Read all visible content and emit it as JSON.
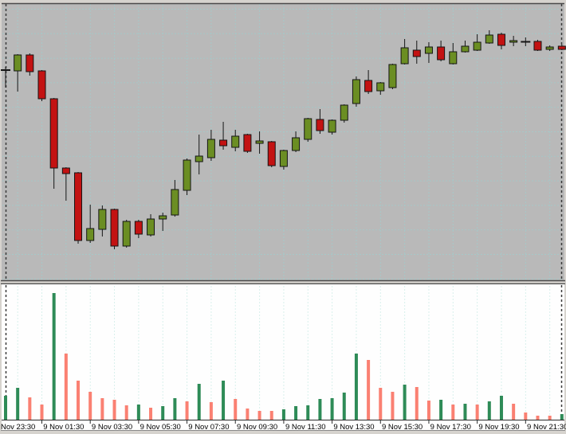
{
  "colors": {
    "frame_bg": "#D6D3CE",
    "price_pane_bg": "#B9B9B9",
    "volume_pane_bg": "#FEFEFE",
    "grid_price": "#A6C8C8",
    "grid_volume": "#D8F0EC",
    "bull_body": "#6B8E23",
    "bear_body": "#C31212",
    "candle_outline": "#151515",
    "volume_up": "#2E8B57",
    "volume_down": "#FA8072",
    "axis_line": "#2B2B2B",
    "axis_text": "#000000",
    "pane_border": "#4A4A4A",
    "side_dash": "#3A3A3A"
  },
  "chart_data": {
    "type": "candlestick",
    "period": "M30",
    "panes": [
      "price",
      "volume"
    ],
    "grid": "dashed, vertical every 2 candles (1h), horizontal every ~31px in price pane",
    "legend_position": "none",
    "y_axis": "not visible (cropped)",
    "x_axis_labels": [
      {
        "text": "Nov 23:30",
        "candle_index": 1
      },
      {
        "text": "9 Nov 01:30",
        "candle_index": 5
      },
      {
        "text": "9 Nov 03:30",
        "candle_index": 9
      },
      {
        "text": "9 Nov 05:30",
        "candle_index": 13
      },
      {
        "text": "9 Nov 07:30",
        "candle_index": 17
      },
      {
        "text": "9 Nov 09:30",
        "candle_index": 21
      },
      {
        "text": "9 Nov 11:30",
        "candle_index": 25
      },
      {
        "text": "9 Nov 13:30",
        "candle_index": 29
      },
      {
        "text": "9 Nov 15:30",
        "candle_index": 33
      },
      {
        "text": "9 Nov 17:30",
        "candle_index": 37
      },
      {
        "text": "9 Nov 19:30",
        "candle_index": 41
      },
      {
        "text": "9 Nov 21:30",
        "candle_index": 45
      }
    ],
    "candles": {
      "columns": [
        "time",
        "direction",
        "body_top_px",
        "body_bottom_px",
        "wick_high_px",
        "wick_low_px",
        "volume",
        "volume_direction"
      ],
      "rows": [
        [
          "8 Nov 23:00",
          "doji",
          87,
          89,
          84,
          110,
          30,
          "up"
        ],
        [
          "8 Nov 23:30",
          "up",
          69,
          89,
          68,
          115,
          40,
          "up"
        ],
        [
          "9 Nov 00:00",
          "down",
          69,
          90,
          67,
          95,
          28,
          "down"
        ],
        [
          "9 Nov 00:30",
          "down",
          89,
          124,
          88,
          127,
          19,
          "down"
        ],
        [
          "9 Nov 01:00",
          "down",
          124,
          211,
          123,
          237,
          159,
          "up"
        ],
        [
          "9 Nov 01:30",
          "down",
          211,
          218,
          210,
          252,
          83,
          "down"
        ],
        [
          "9 Nov 02:00",
          "down",
          217,
          302,
          216,
          306,
          49,
          "down"
        ],
        [
          "9 Nov 02:30",
          "up",
          287,
          302,
          257,
          305,
          35,
          "down"
        ],
        [
          "9 Nov 03:00",
          "up",
          263,
          288,
          258,
          297,
          27,
          "down"
        ],
        [
          "9 Nov 03:30",
          "down",
          263,
          309,
          262,
          313,
          25,
          "down"
        ],
        [
          "9 Nov 04:00",
          "up",
          278,
          309,
          276,
          311,
          18,
          "down"
        ],
        [
          "9 Nov 04:30",
          "down",
          278,
          294,
          276,
          299,
          19,
          "up"
        ],
        [
          "9 Nov 05:00",
          "up",
          275,
          295,
          269,
          297,
          15,
          "down"
        ],
        [
          "9 Nov 05:30",
          "up",
          271,
          275,
          267,
          290,
          17,
          "up"
        ],
        [
          "9 Nov 06:00",
          "up",
          238,
          270,
          226,
          272,
          27,
          "up"
        ],
        [
          "9 Nov 06:30",
          "up",
          201,
          239,
          199,
          245,
          23,
          "down"
        ],
        [
          "9 Nov 07:00",
          "up",
          196,
          203,
          169,
          219,
          45,
          "up"
        ],
        [
          "9 Nov 07:30",
          "up",
          175,
          198,
          163,
          202,
          22,
          "down"
        ],
        [
          "9 Nov 08:00",
          "down",
          176,
          183,
          153,
          188,
          49,
          "up"
        ],
        [
          "9 Nov 08:30",
          "up",
          171,
          185,
          163,
          190,
          26,
          "down"
        ],
        [
          "9 Nov 09:00",
          "down",
          169,
          190,
          168,
          192,
          14,
          "down"
        ],
        [
          "9 Nov 09:30",
          "up",
          177,
          180,
          165,
          193,
          11,
          "down"
        ],
        [
          "9 Nov 10:00",
          "down",
          178,
          208,
          177,
          210,
          11,
          "down"
        ],
        [
          "9 Nov 10:30",
          "up",
          189,
          209,
          188,
          213,
          13,
          "up"
        ],
        [
          "9 Nov 11:00",
          "up",
          173,
          189,
          165,
          191,
          17,
          "up"
        ],
        [
          "9 Nov 11:30",
          "up",
          149,
          175,
          148,
          178,
          18,
          "up"
        ],
        [
          "9 Nov 12:00",
          "down",
          150,
          164,
          137,
          168,
          26,
          "up"
        ],
        [
          "9 Nov 12:30",
          "up",
          151,
          166,
          150,
          169,
          27,
          "up"
        ],
        [
          "9 Nov 13:00",
          "up",
          132,
          151,
          131,
          154,
          34,
          "up"
        ],
        [
          "9 Nov 13:30",
          "up",
          100,
          130,
          96,
          134,
          83,
          "up"
        ],
        [
          "9 Nov 14:00",
          "down",
          101,
          115,
          88,
          118,
          75,
          "down"
        ],
        [
          "9 Nov 14:30",
          "up",
          104,
          114,
          103,
          119,
          40,
          "down"
        ],
        [
          "9 Nov 15:00",
          "up",
          81,
          110,
          80,
          112,
          35,
          "down"
        ],
        [
          "9 Nov 15:30",
          "up",
          60,
          80,
          49,
          81,
          44,
          "up"
        ],
        [
          "9 Nov 16:00",
          "down",
          63,
          71,
          51,
          80,
          41,
          "down"
        ],
        [
          "9 Nov 16:30",
          "up",
          59,
          67,
          53,
          79,
          24,
          "down"
        ],
        [
          "9 Nov 17:00",
          "down",
          59,
          75,
          51,
          77,
          25,
          "up"
        ],
        [
          "9 Nov 17:30",
          "up",
          65,
          80,
          54,
          81,
          19,
          "down"
        ],
        [
          "9 Nov 18:00",
          "up",
          58,
          65,
          51,
          66,
          20,
          "up"
        ],
        [
          "9 Nov 18:30",
          "up",
          53,
          63,
          43,
          64,
          19,
          "down"
        ],
        [
          "9 Nov 19:00",
          "up",
          44,
          54,
          38,
          55,
          23,
          "up"
        ],
        [
          "9 Nov 19:30",
          "down",
          43,
          57,
          41,
          62,
          30,
          "up"
        ],
        [
          "9 Nov 20:00",
          "up",
          51,
          53,
          45,
          58,
          20,
          "down"
        ],
        [
          "9 Nov 20:30",
          "doji",
          52,
          53,
          47,
          58,
          9,
          "down"
        ],
        [
          "9 Nov 21:00",
          "down",
          52,
          63,
          50,
          64,
          5,
          "down"
        ],
        [
          "9 Nov 21:30",
          "up",
          59,
          62,
          57,
          64,
          5,
          "down"
        ],
        [
          "9 Nov 22:00",
          "down",
          58,
          62,
          56,
          63,
          7,
          "up"
        ]
      ]
    }
  }
}
